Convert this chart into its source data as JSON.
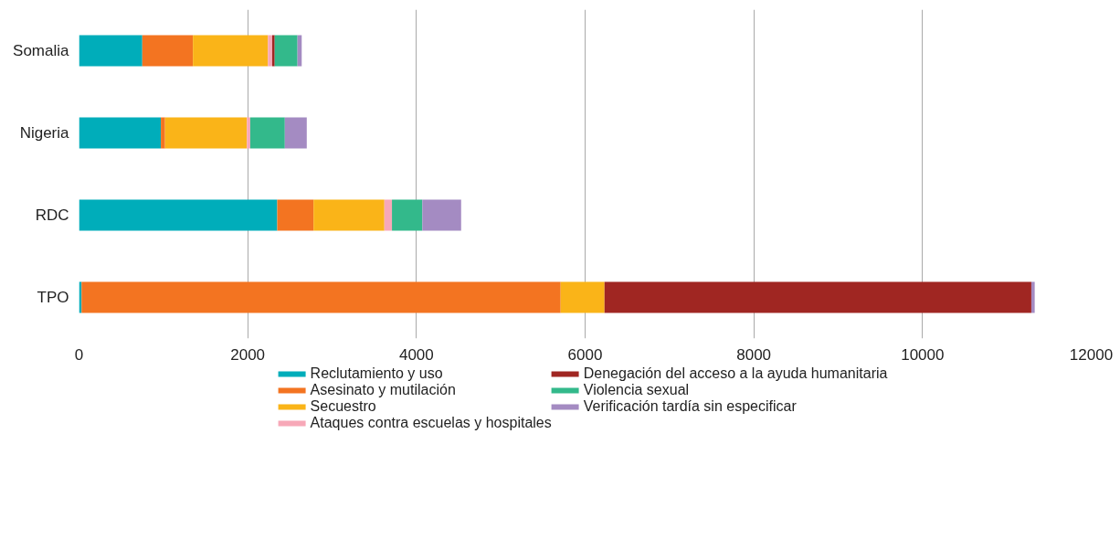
{
  "chart_data": {
    "type": "bar",
    "orientation": "horizontal",
    "stacked": true,
    "categories": [
      "Somalia",
      "Nigeria",
      "RDC",
      "TPO"
    ],
    "series": [
      {
        "name": "Reclutamiento y uso",
        "color": "#00adba",
        "values": [
          750,
          970,
          2350,
          30
        ]
      },
      {
        "name": "Asesinato y mutilación",
        "color": "#f37421",
        "values": [
          600,
          50,
          430,
          5680
        ]
      },
      {
        "name": "Secuestro",
        "color": "#fab418",
        "values": [
          890,
          970,
          840,
          520
        ]
      },
      {
        "name": "Ataques contra escuelas y hospitales",
        "color": "#f7a8b8",
        "values": [
          50,
          40,
          90,
          null
        ]
      },
      {
        "name": "Denegación del acceso a la ayuda humanitaria",
        "color": "#a02622",
        "values": [
          30,
          null,
          null,
          5060
        ]
      },
      {
        "name": "Violencia sexual",
        "color": "#33b98b",
        "values": [
          270,
          410,
          360,
          null
        ]
      },
      {
        "name": "Verificación tardía sin especificar",
        "color": "#a48bc2",
        "values": [
          50,
          260,
          460,
          40
        ]
      }
    ],
    "xlim": [
      0,
      12000
    ],
    "xticks": [
      0,
      2000,
      4000,
      6000,
      8000,
      10000,
      12000
    ],
    "grid": "x",
    "legend": "bottom"
  }
}
